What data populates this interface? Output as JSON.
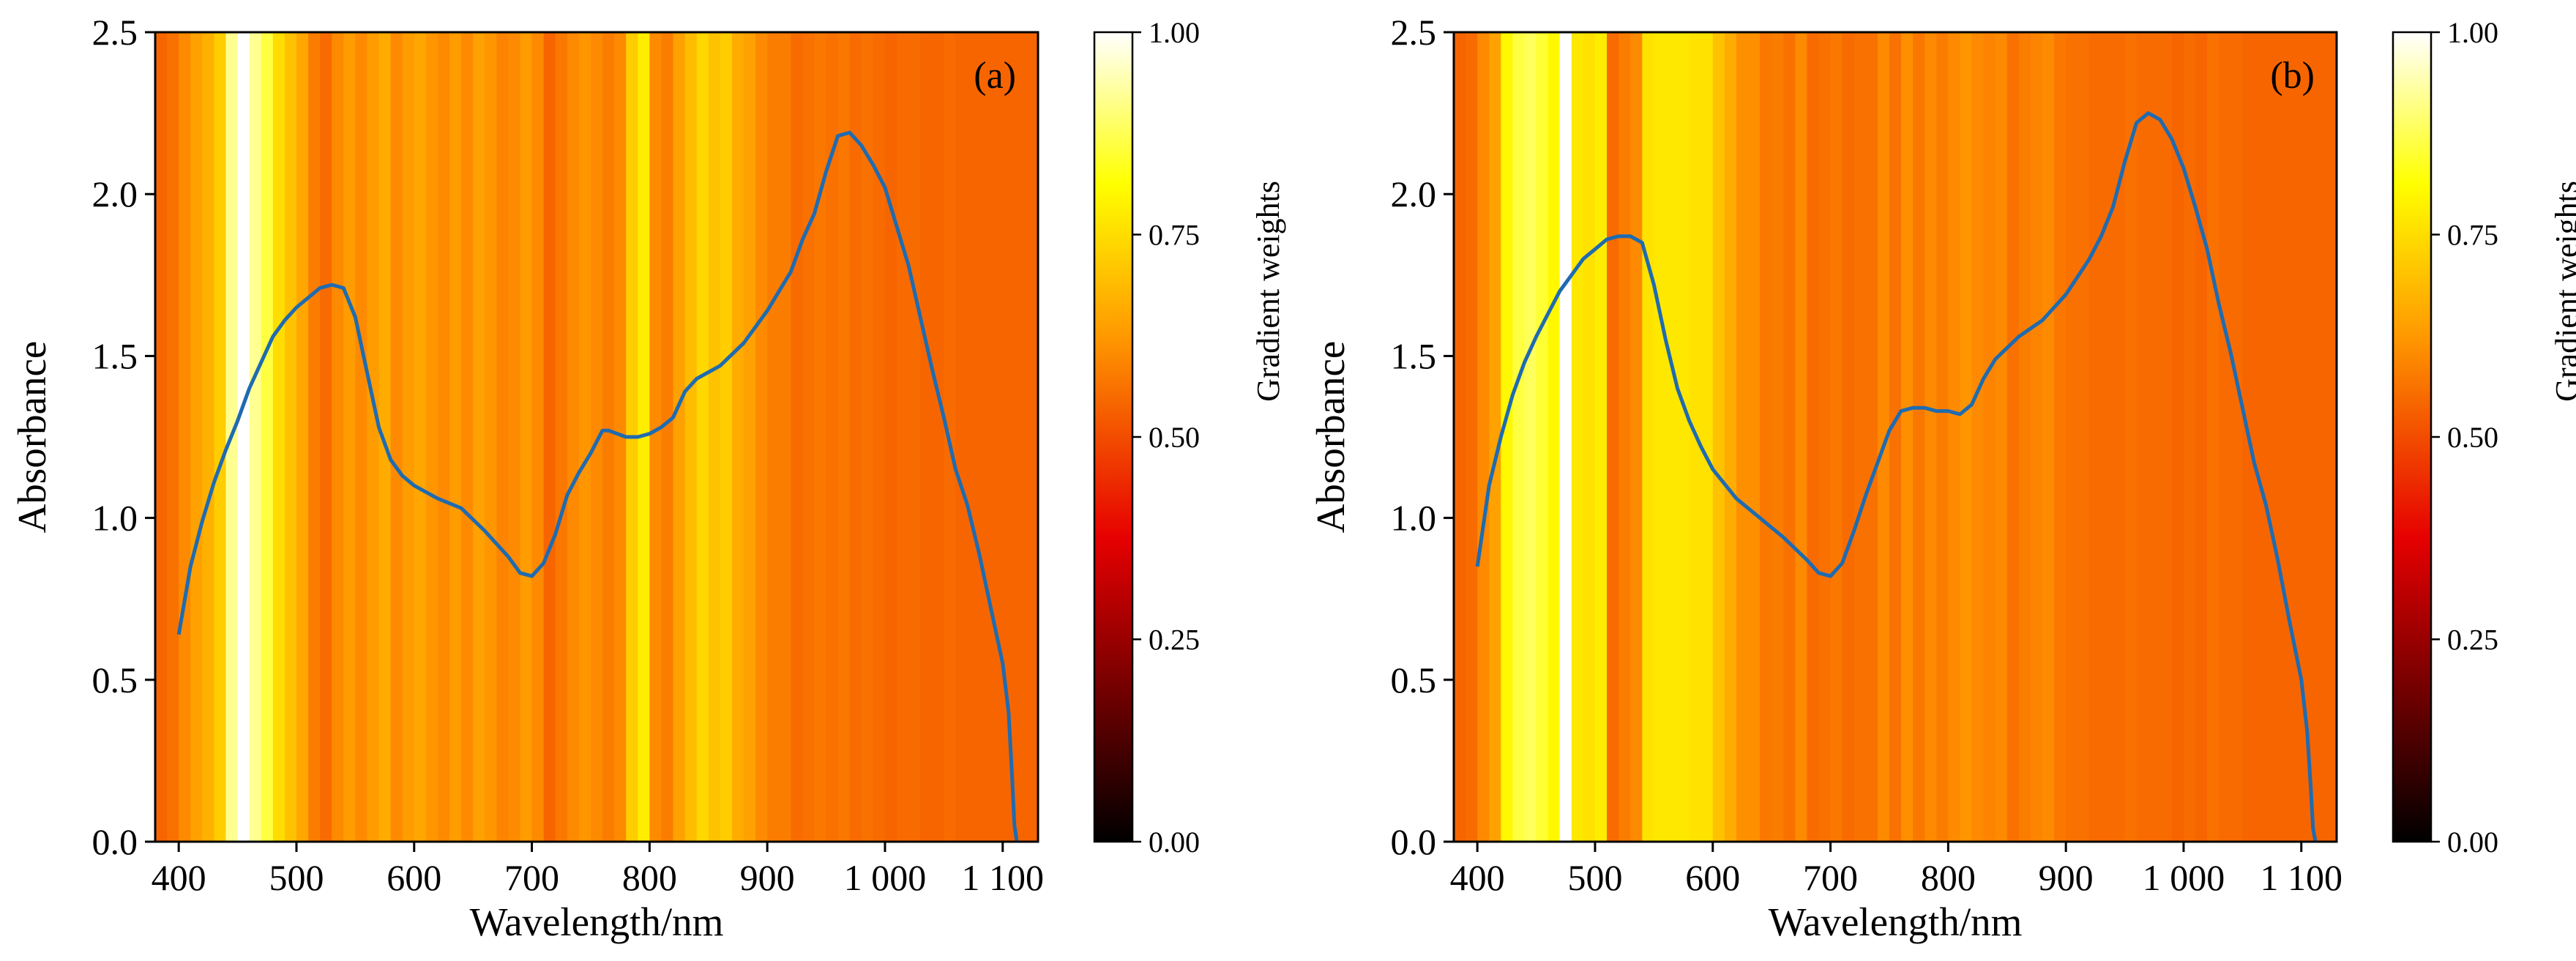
{
  "colormap": {
    "name": "hot",
    "stops": [
      "#000000",
      "#e60000",
      "#ff9900",
      "#ffff00",
      "#ffffff"
    ]
  },
  "chart_data": [
    {
      "type": "heatmap",
      "panel_label": "(a)",
      "xlabel": "Wavelength/nm",
      "ylabel": "Absorbance",
      "xlim": [
        380,
        1130
      ],
      "ylim": [
        0.0,
        2.5
      ],
      "xticks": [
        400,
        500,
        600,
        700,
        800,
        900,
        1000,
        1100
      ],
      "xtick_labels": [
        "400",
        "500",
        "600",
        "700",
        "800",
        "900",
        "1 000",
        "1 100"
      ],
      "yticks": [
        0.0,
        0.5,
        1.0,
        1.5,
        2.0,
        2.5
      ],
      "ytick_labels": [
        "0.0",
        "0.5",
        "1.0",
        "1.5",
        "2.0",
        "2.5"
      ],
      "colorbar": {
        "label": "Gradient weights",
        "ticks": [
          0.0,
          0.25,
          0.5,
          0.75,
          1.0
        ],
        "tick_labels": [
          "0.00",
          "0.25",
          "0.50",
          "0.75",
          "1.00"
        ]
      },
      "line_color": "#1f6bb0",
      "heatmap_band_width": 10,
      "heatmap_values": [
        0.54,
        0.56,
        0.6,
        0.64,
        0.67,
        0.72,
        0.92,
        1.0,
        0.92,
        0.86,
        0.75,
        0.7,
        0.65,
        0.58,
        0.55,
        0.6,
        0.63,
        0.6,
        0.63,
        0.66,
        0.6,
        0.63,
        0.65,
        0.62,
        0.6,
        0.63,
        0.6,
        0.64,
        0.62,
        0.59,
        0.6,
        0.63,
        0.6,
        0.54,
        0.57,
        0.6,
        0.62,
        0.6,
        0.58,
        0.6,
        0.72,
        0.78,
        0.6,
        0.58,
        0.64,
        0.69,
        0.74,
        0.7,
        0.72,
        0.66,
        0.64,
        0.6,
        0.58,
        0.58,
        0.55,
        0.56,
        0.57,
        0.56,
        0.57,
        0.55,
        0.56,
        0.55,
        0.54,
        0.55,
        0.55,
        0.54,
        0.54,
        0.55,
        0.54,
        0.54,
        0.54,
        0.54,
        0.54,
        0.54,
        0.54
      ],
      "series": [
        {
          "x": [
            400,
            410,
            420,
            430,
            440,
            450,
            460,
            470,
            480,
            490,
            500,
            510,
            520,
            530,
            540,
            550,
            560,
            570,
            580,
            590,
            600,
            620,
            640,
            660,
            680,
            690,
            700,
            710,
            720,
            730,
            740,
            750,
            760,
            765,
            780,
            790,
            800,
            810,
            820,
            830,
            840,
            860,
            880,
            900,
            920,
            930,
            940,
            950,
            960,
            970,
            980,
            990,
            1000,
            1010,
            1020,
            1030,
            1040,
            1050,
            1060,
            1070,
            1080,
            1090,
            1100,
            1105,
            1108,
            1110,
            1112
          ],
          "y": [
            0.64,
            0.85,
            0.99,
            1.11,
            1.21,
            1.3,
            1.4,
            1.48,
            1.56,
            1.61,
            1.65,
            1.68,
            1.71,
            1.72,
            1.71,
            1.62,
            1.45,
            1.28,
            1.18,
            1.13,
            1.1,
            1.06,
            1.03,
            0.96,
            0.88,
            0.83,
            0.82,
            0.86,
            0.95,
            1.07,
            1.14,
            1.2,
            1.27,
            1.27,
            1.25,
            1.25,
            1.26,
            1.28,
            1.31,
            1.39,
            1.43,
            1.47,
            1.54,
            1.64,
            1.76,
            1.86,
            1.94,
            2.07,
            2.18,
            2.19,
            2.15,
            2.09,
            2.02,
            1.9,
            1.78,
            1.62,
            1.46,
            1.31,
            1.15,
            1.04,
            0.89,
            0.72,
            0.55,
            0.4,
            0.2,
            0.05,
            0.0
          ]
        }
      ]
    },
    {
      "type": "heatmap",
      "panel_label": "(b)",
      "xlabel": "Wavelength/nm",
      "ylabel": "Absorbance",
      "xlim": [
        380,
        1130
      ],
      "ylim": [
        0.0,
        2.5
      ],
      "xticks": [
        400,
        500,
        600,
        700,
        800,
        900,
        1000,
        1100
      ],
      "xtick_labels": [
        "400",
        "500",
        "600",
        "700",
        "800",
        "900",
        "1 000",
        "1 100"
      ],
      "yticks": [
        0.0,
        0.5,
        1.0,
        1.5,
        2.0,
        2.5
      ],
      "ytick_labels": [
        "0.0",
        "0.5",
        "1.0",
        "1.5",
        "2.0",
        "2.5"
      ],
      "colorbar": {
        "label": "Gradient weights",
        "ticks": [
          0.0,
          0.25,
          0.5,
          0.75,
          1.0
        ],
        "tick_labels": [
          "0.00",
          "0.25",
          "0.50",
          "0.75",
          "1.00"
        ]
      },
      "line_color": "#1f6bb0",
      "heatmap_band_width": 10,
      "heatmap_values": [
        0.54,
        0.55,
        0.6,
        0.64,
        0.8,
        0.86,
        0.88,
        0.85,
        0.8,
        1.0,
        0.77,
        0.76,
        0.78,
        0.55,
        0.58,
        0.6,
        0.76,
        0.77,
        0.77,
        0.77,
        0.76,
        0.76,
        0.7,
        0.66,
        0.61,
        0.61,
        0.57,
        0.58,
        0.56,
        0.6,
        0.55,
        0.56,
        0.57,
        0.55,
        0.56,
        0.56,
        0.6,
        0.56,
        0.61,
        0.57,
        0.6,
        0.58,
        0.6,
        0.62,
        0.6,
        0.59,
        0.6,
        0.56,
        0.58,
        0.59,
        0.6,
        0.57,
        0.56,
        0.56,
        0.55,
        0.55,
        0.55,
        0.56,
        0.55,
        0.55,
        0.55,
        0.54,
        0.55,
        0.54,
        0.56,
        0.55,
        0.55,
        0.54,
        0.54,
        0.54,
        0.54,
        0.54,
        0.54,
        0.54,
        0.54
      ],
      "series": [
        {
          "x": [
            400,
            410,
            420,
            430,
            440,
            450,
            460,
            470,
            480,
            490,
            500,
            510,
            520,
            530,
            540,
            550,
            560,
            570,
            580,
            590,
            600,
            620,
            640,
            660,
            680,
            690,
            700,
            710,
            720,
            730,
            740,
            750,
            760,
            770,
            780,
            790,
            800,
            810,
            820,
            830,
            840,
            860,
            880,
            900,
            920,
            930,
            940,
            950,
            960,
            970,
            980,
            990,
            1000,
            1010,
            1020,
            1030,
            1040,
            1050,
            1060,
            1070,
            1080,
            1090,
            1100,
            1105,
            1108,
            1110,
            1112
          ],
          "y": [
            0.85,
            1.1,
            1.25,
            1.38,
            1.48,
            1.56,
            1.63,
            1.7,
            1.75,
            1.8,
            1.83,
            1.86,
            1.87,
            1.87,
            1.85,
            1.72,
            1.55,
            1.4,
            1.3,
            1.22,
            1.15,
            1.06,
            1.0,
            0.94,
            0.87,
            0.83,
            0.82,
            0.86,
            0.96,
            1.07,
            1.17,
            1.27,
            1.33,
            1.34,
            1.34,
            1.33,
            1.33,
            1.32,
            1.35,
            1.43,
            1.49,
            1.56,
            1.61,
            1.69,
            1.8,
            1.87,
            1.96,
            2.1,
            2.22,
            2.25,
            2.23,
            2.17,
            2.08,
            1.96,
            1.83,
            1.66,
            1.51,
            1.34,
            1.17,
            1.04,
            0.87,
            0.68,
            0.5,
            0.34,
            0.17,
            0.04,
            0.0
          ]
        }
      ]
    }
  ]
}
